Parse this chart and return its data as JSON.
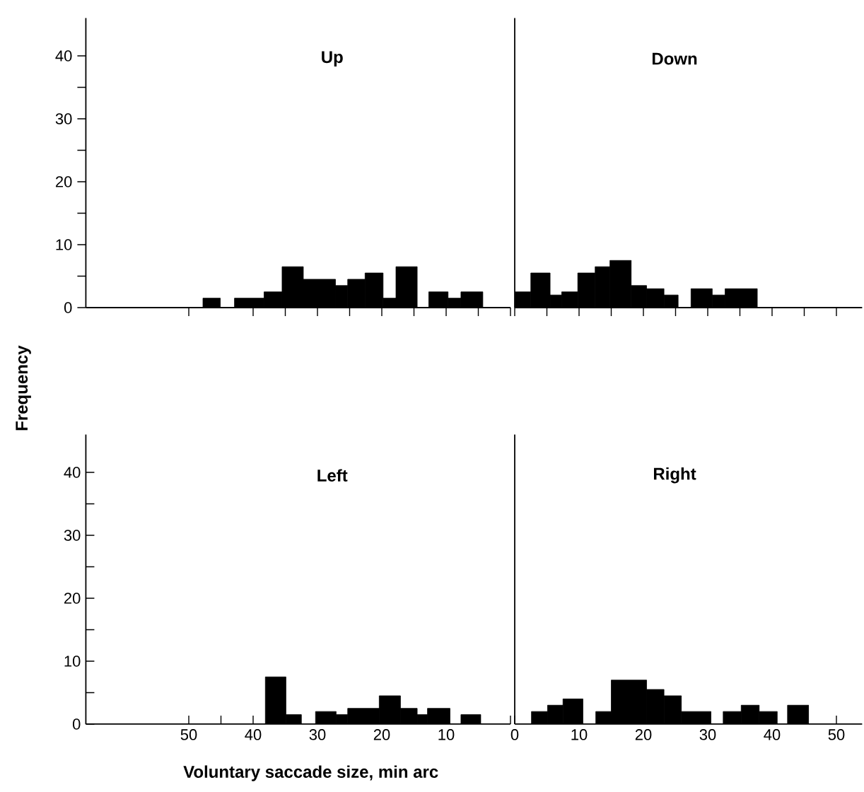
{
  "chart_data": [
    {
      "type": "histogram",
      "title": "Up",
      "bins": [
        4.3,
        7.7,
        9.7,
        12.7,
        14.5,
        17.8,
        19.8,
        22.6,
        25.3,
        27.2,
        32.2,
        35.5,
        38.3,
        42.9,
        45.1,
        47.8
      ],
      "values": [
        2.5,
        1.5,
        2.5,
        0,
        6.5,
        1.5,
        5.5,
        4.5,
        3.5,
        4.5,
        6.5,
        2.5,
        1.5,
        0,
        1.5
      ],
      "color": "#000000",
      "xlim": [
        66,
        0
      ],
      "ylim": [
        0,
        46
      ],
      "xticks": [
        {
          "value": 0,
          "label": null
        },
        {
          "value": 5,
          "label": null
        },
        10,
        {
          "value": 15,
          "label": null
        },
        20,
        {
          "value": 25,
          "label": null
        },
        30,
        {
          "value": 35,
          "label": null
        },
        40,
        50
      ],
      "yticks": [
        0,
        {
          "value": 5,
          "label": null
        },
        10,
        {
          "value": 15,
          "label": null
        },
        20,
        {
          "value": 25,
          "label": null
        },
        30,
        {
          "value": 35,
          "label": null
        },
        40
      ],
      "tick_labels": "y"
    },
    {
      "type": "histogram",
      "title": "Down",
      "bins": [
        0,
        2.5,
        5.5,
        7.3,
        9.8,
        12.5,
        14.8,
        18.1,
        20.5,
        23.2,
        25.4,
        27.4,
        30.7,
        32.7,
        37.7
      ],
      "values": [
        2.5,
        5.5,
        2,
        2.5,
        5.5,
        6.5,
        7.5,
        3.5,
        3,
        2,
        0,
        3,
        2,
        3
      ],
      "color": "#000000",
      "xlim": [
        0,
        54
      ],
      "ylim": [
        0,
        46
      ],
      "xticks": [
        0,
        {
          "value": 5,
          "label": null
        },
        10,
        {
          "value": 15,
          "label": null
        },
        20,
        {
          "value": 25,
          "label": null
        },
        30,
        {
          "value": 35,
          "label": null
        },
        40,
        {
          "value": 45,
          "label": null
        },
        50
      ],
      "tick_labels": false
    },
    {
      "type": "histogram",
      "title": "Left",
      "xlabel": "Voluntary saccade size, min arc",
      "ylabel": "Frequency",
      "bins": [
        4.6,
        7.7,
        9.4,
        12.9,
        14.5,
        17.1,
        20.4,
        25.3,
        27.1,
        30.3,
        32.5,
        34.9,
        38.1
      ],
      "values": [
        1.5,
        0,
        2.5,
        1.5,
        2.5,
        4.5,
        2.5,
        1.5,
        2,
        0,
        1.5,
        7.5
      ],
      "color": "#000000",
      "xlim": [
        66,
        0
      ],
      "ylim": [
        0,
        46
      ],
      "xticks": [
        {
          "value": 0,
          "label": null
        },
        {
          "value": 5,
          "label": null
        },
        10,
        {
          "value": 15,
          "label": null
        },
        20,
        {
          "value": 25,
          "label": null
        },
        30,
        40,
        {
          "value": 45,
          "label": null
        },
        50
      ],
      "yticks": [
        0,
        {
          "value": 5,
          "label": null
        },
        10,
        {
          "value": 15,
          "label": null
        },
        20,
        {
          "value": 25,
          "label": null
        },
        30,
        {
          "value": 35,
          "label": null
        },
        40
      ]
    },
    {
      "type": "histogram",
      "title": "Right",
      "bins": [
        2.6,
        5.1,
        7.5,
        10.6,
        12.6,
        15.0,
        20.5,
        23.2,
        25.9,
        30.5,
        32.4,
        35.2,
        38.0,
        40.8,
        42.4,
        45.7
      ],
      "values": [
        2,
        3,
        4,
        0,
        2,
        7,
        5.5,
        4.5,
        2,
        0,
        2,
        3,
        2,
        0,
        3
      ],
      "color": "#000000",
      "xlim": [
        0,
        54
      ],
      "ylim": [
        0,
        46
      ],
      "xticks": [
        0,
        {
          "value": 5,
          "label": null
        },
        10,
        {
          "value": 15,
          "label": null
        },
        20,
        {
          "value": 25,
          "label": null
        },
        30,
        {
          "value": 35,
          "label": null
        },
        40,
        {
          "value": 45,
          "label": null
        },
        50
      ],
      "tick_labels": "x"
    }
  ]
}
